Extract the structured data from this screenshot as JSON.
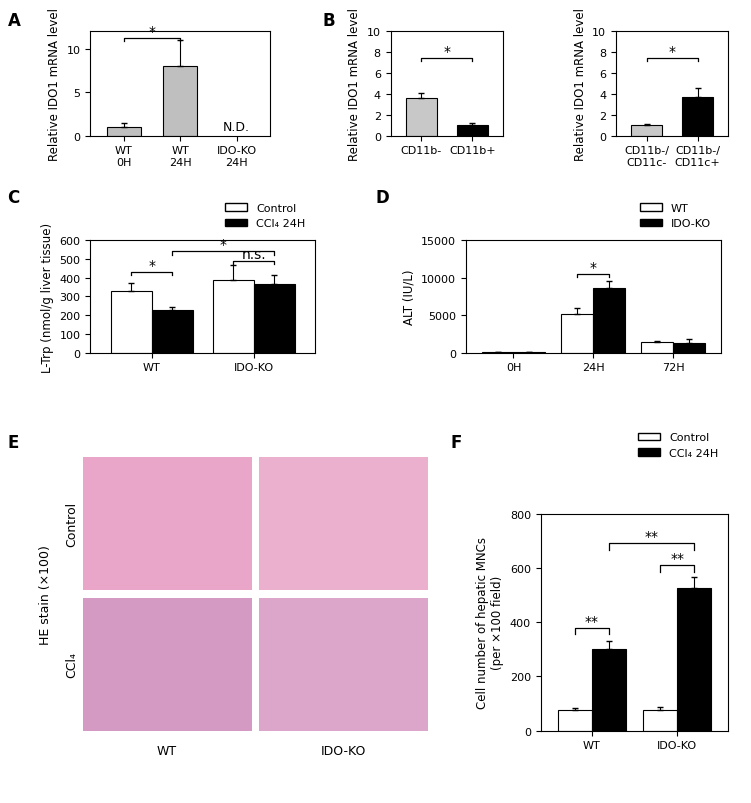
{
  "chart_data": [
    {
      "type": "bar",
      "title": "A",
      "categories": [
        "WT\n0H",
        "WT\n24H",
        "IDO-KO\n24H"
      ],
      "values": [
        1,
        8,
        null
      ],
      "errors": [
        0.5,
        3,
        null
      ],
      "color": "#bfbfbf",
      "y_label": "Relative IDO1 mRNA level",
      "ylim": [
        0,
        12
      ],
      "yticks": [
        0,
        5,
        10
      ],
      "annotations": [
        {
          "text": "*",
          "from": 0,
          "to": 1,
          "y": 11.2
        },
        {
          "text": "N.D.",
          "at": 2,
          "y": 0.3
        }
      ]
    },
    {
      "type": "bar",
      "title": "B",
      "categories": [
        "CD11b-",
        "CD11b+"
      ],
      "values": [
        3.6,
        1.0
      ],
      "errors": [
        0.5,
        0.25
      ],
      "colors": [
        "#c8c8c8",
        "#000000"
      ],
      "y_label": "Relative IDO1 mRNA level",
      "ylim": [
        0,
        10
      ],
      "yticks": [
        0,
        2,
        4,
        6,
        8,
        10
      ],
      "annotations": [
        {
          "text": "*",
          "from": 0,
          "to": 1,
          "y": 7.4
        }
      ]
    },
    {
      "type": "bar",
      "categories": [
        "CD11b-/\nCD11c-",
        "CD11b-/\nCD11c+"
      ],
      "values": [
        1.0,
        3.7
      ],
      "errors": [
        0.15,
        0.9
      ],
      "colors": [
        "#c8c8c8",
        "#000000"
      ],
      "y_label": "Relative IDO1 mRNA level",
      "ylim": [
        0,
        10
      ],
      "yticks": [
        0,
        2,
        4,
        6,
        8,
        10
      ],
      "annotations": [
        {
          "text": "*",
          "from": 0,
          "to": 1,
          "y": 7.4
        }
      ]
    },
    {
      "type": "bar",
      "title": "C",
      "categories": [
        "WT",
        "IDO-KO"
      ],
      "series": [
        {
          "name": "Control",
          "color": "#ffffff",
          "values": [
            330,
            390
          ],
          "errors": [
            40,
            80
          ]
        },
        {
          "name": "CCl₄ 24H",
          "color": "#000000",
          "values": [
            228,
            368
          ],
          "errors": [
            15,
            45
          ]
        }
      ],
      "y_label": "L-Trp (nmol/g liver tissue)",
      "ylim": [
        0,
        600
      ],
      "yticks": [
        0,
        100,
        200,
        300,
        400,
        500,
        600
      ],
      "legend": "upper right",
      "annotations": [
        {
          "text": "*",
          "from": [
            0,
            0
          ],
          "to": [
            0,
            1
          ],
          "y": 430
        },
        {
          "text": "n.s.",
          "from": [
            1,
            0
          ],
          "to": [
            1,
            1
          ],
          "y": 490
        },
        {
          "text": "*",
          "from": [
            0,
            1
          ],
          "to": [
            1,
            1
          ],
          "y": 540
        }
      ]
    },
    {
      "type": "bar",
      "title": "D",
      "categories": [
        "0H",
        "24H",
        "72H"
      ],
      "series": [
        {
          "name": "WT",
          "color": "#ffffff",
          "values": [
            50,
            5100,
            1450
          ],
          "errors": [
            20,
            800,
            150
          ]
        },
        {
          "name": "IDO-KO",
          "color": "#000000",
          "values": [
            60,
            8600,
            1300
          ],
          "errors": [
            30,
            900,
            500
          ]
        }
      ],
      "y_label": "ALT (IU/L)",
      "ylim": [
        0,
        15000
      ],
      "yticks": [
        0,
        5000,
        10000,
        15000
      ],
      "legend": "upper right",
      "annotations": [
        {
          "text": "*",
          "from": [
            1,
            0
          ],
          "to": [
            1,
            1
          ],
          "y": 10500
        }
      ]
    },
    {
      "type": "bar",
      "title": "F",
      "categories": [
        "WT",
        "IDO-KO"
      ],
      "series": [
        {
          "name": "Control",
          "color": "#ffffff",
          "values": [
            75,
            75
          ],
          "errors": [
            8,
            12
          ]
        },
        {
          "name": "CCl₄ 24H",
          "color": "#000000",
          "values": [
            300,
            525
          ],
          "errors": [
            30,
            40
          ]
        }
      ],
      "y_label": "Cell number of hepatic MNCs\n(per ×100 field)",
      "ylim": [
        0,
        800
      ],
      "yticks": [
        0,
        200,
        400,
        600,
        800
      ],
      "legend": "upper right",
      "annotations": [
        {
          "text": "**",
          "from": [
            0,
            0
          ],
          "to": [
            0,
            1
          ],
          "y": 380
        },
        {
          "text": "**",
          "from": [
            1,
            0
          ],
          "to": [
            1,
            1
          ],
          "y": 610
        },
        {
          "text": "**",
          "from": [
            0,
            1
          ],
          "to": [
            1,
            1
          ],
          "y": 690
        }
      ]
    }
  ],
  "images": {
    "title": "E",
    "side_label": "HE stain (×100)",
    "row_labels": [
      "Control",
      "CCl₄"
    ],
    "column_labels": [
      "WT",
      "IDO-KO"
    ]
  }
}
